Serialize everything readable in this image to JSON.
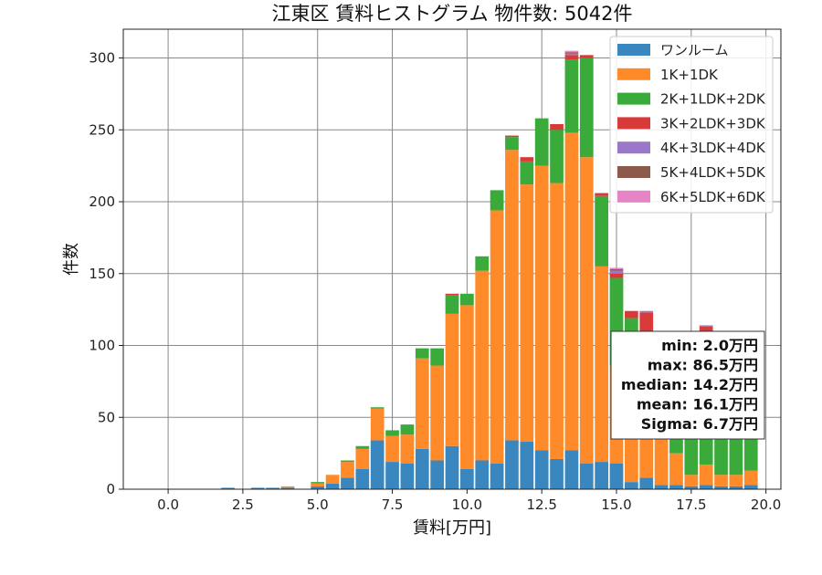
{
  "chart_data": {
    "type": "bar",
    "stacked": true,
    "title": "江東区 賃料ヒストグラム 物件数: 5042件",
    "xlabel": "賃料[万円]",
    "ylabel": "件数",
    "xlim": [
      -1.5,
      20.5
    ],
    "ylim": [
      0,
      320
    ],
    "xticks": [
      "0.0",
      "2.5",
      "5.0",
      "7.5",
      "10.0",
      "12.5",
      "15.0",
      "17.5",
      "20.0"
    ],
    "yticks": [
      "0",
      "50",
      "100",
      "150",
      "200",
      "250",
      "300"
    ],
    "grid": true,
    "legend_position": "top-right",
    "bin_width": 0.5,
    "x": [
      0.0,
      0.5,
      1.0,
      1.5,
      2.0,
      2.5,
      3.0,
      3.5,
      4.0,
      4.5,
      5.0,
      5.5,
      6.0,
      6.5,
      7.0,
      7.5,
      8.0,
      8.5,
      9.0,
      9.5,
      10.0,
      10.5,
      11.0,
      11.5,
      12.0,
      12.5,
      13.0,
      13.5,
      14.0,
      14.5,
      15.0,
      15.5,
      16.0,
      16.5,
      17.0,
      17.5,
      18.0,
      18.5,
      19.0,
      19.5
    ],
    "series": [
      {
        "name": "ワンルーム",
        "color": "#3a87c0",
        "values": [
          0,
          0,
          0,
          0,
          1,
          0,
          1,
          1,
          1,
          0,
          2,
          4,
          8,
          14,
          34,
          19,
          18,
          28,
          20,
          30,
          14,
          20,
          18,
          34,
          33,
          27,
          21,
          27,
          18,
          19,
          18,
          5,
          8,
          3,
          3,
          2,
          3,
          2,
          2,
          3
        ]
      },
      {
        "name": "1K+1DK",
        "color": "#ff8a2a",
        "values": [
          0,
          0,
          0,
          0,
          0,
          0,
          0,
          0,
          1,
          0,
          2,
          6,
          11,
          14,
          22,
          18,
          20,
          63,
          66,
          92,
          114,
          132,
          176,
          202,
          179,
          198,
          192,
          221,
          213,
          136,
          68,
          60,
          44,
          33,
          22,
          8,
          14,
          8,
          8,
          10
        ]
      },
      {
        "name": "2K+1LDK+2DK",
        "color": "#3aaa3a",
        "values": [
          0,
          0,
          0,
          0,
          0,
          0,
          0,
          0,
          0,
          0,
          1,
          0,
          1,
          2,
          1,
          4,
          7,
          7,
          12,
          13,
          8,
          10,
          14,
          9,
          16,
          33,
          37,
          51,
          69,
          49,
          61,
          54,
          54,
          53,
          60,
          64,
          86,
          60,
          68,
          63
        ]
      },
      {
        "name": "3K+2LDK+3DK",
        "color": "#d83a3a",
        "values": [
          0,
          0,
          0,
          0,
          0,
          0,
          0,
          0,
          0,
          0,
          0,
          0,
          0,
          0,
          0,
          0,
          0,
          0,
          0,
          1,
          0,
          0,
          0,
          1,
          3,
          0,
          4,
          3,
          2,
          2,
          3,
          5,
          17,
          5,
          10,
          6,
          10,
          12,
          7,
          14
        ]
      },
      {
        "name": "4K+3LDK+4DK",
        "color": "#9a77c8",
        "values": [
          0,
          0,
          0,
          0,
          0,
          0,
          0,
          0,
          0,
          0,
          0,
          0,
          0,
          0,
          0,
          0,
          0,
          0,
          0,
          0,
          0,
          0,
          0,
          0,
          0,
          0,
          0,
          1,
          0,
          0,
          2,
          0,
          1,
          0,
          0,
          1,
          1,
          0,
          0,
          0
        ]
      },
      {
        "name": "5K+4LDK+5DK",
        "color": "#8c5a4a",
        "values": [
          0,
          0,
          0,
          0,
          0,
          0,
          0,
          0,
          0,
          0,
          0,
          0,
          0,
          0,
          0,
          0,
          0,
          0,
          0,
          0,
          0,
          0,
          0,
          0,
          0,
          0,
          0,
          1,
          0,
          0,
          1,
          0,
          0,
          0,
          0,
          0,
          0,
          0,
          0,
          0
        ]
      },
      {
        "name": "6K+5LDK+6DK",
        "color": "#e684c6",
        "values": [
          0,
          0,
          0,
          0,
          0,
          0,
          0,
          0,
          0,
          0,
          0,
          0,
          0,
          0,
          0,
          0,
          0,
          0,
          0,
          0,
          0,
          0,
          0,
          0,
          0,
          0,
          0,
          1,
          0,
          0,
          1,
          0,
          0,
          0,
          0,
          0,
          0,
          0,
          0,
          0
        ]
      }
    ],
    "stats_lines": [
      "min: 2.0万円",
      "max: 86.5万円",
      "median: 14.2万円",
      "mean: 16.1万円",
      "Sigma: 6.7万円"
    ]
  }
}
